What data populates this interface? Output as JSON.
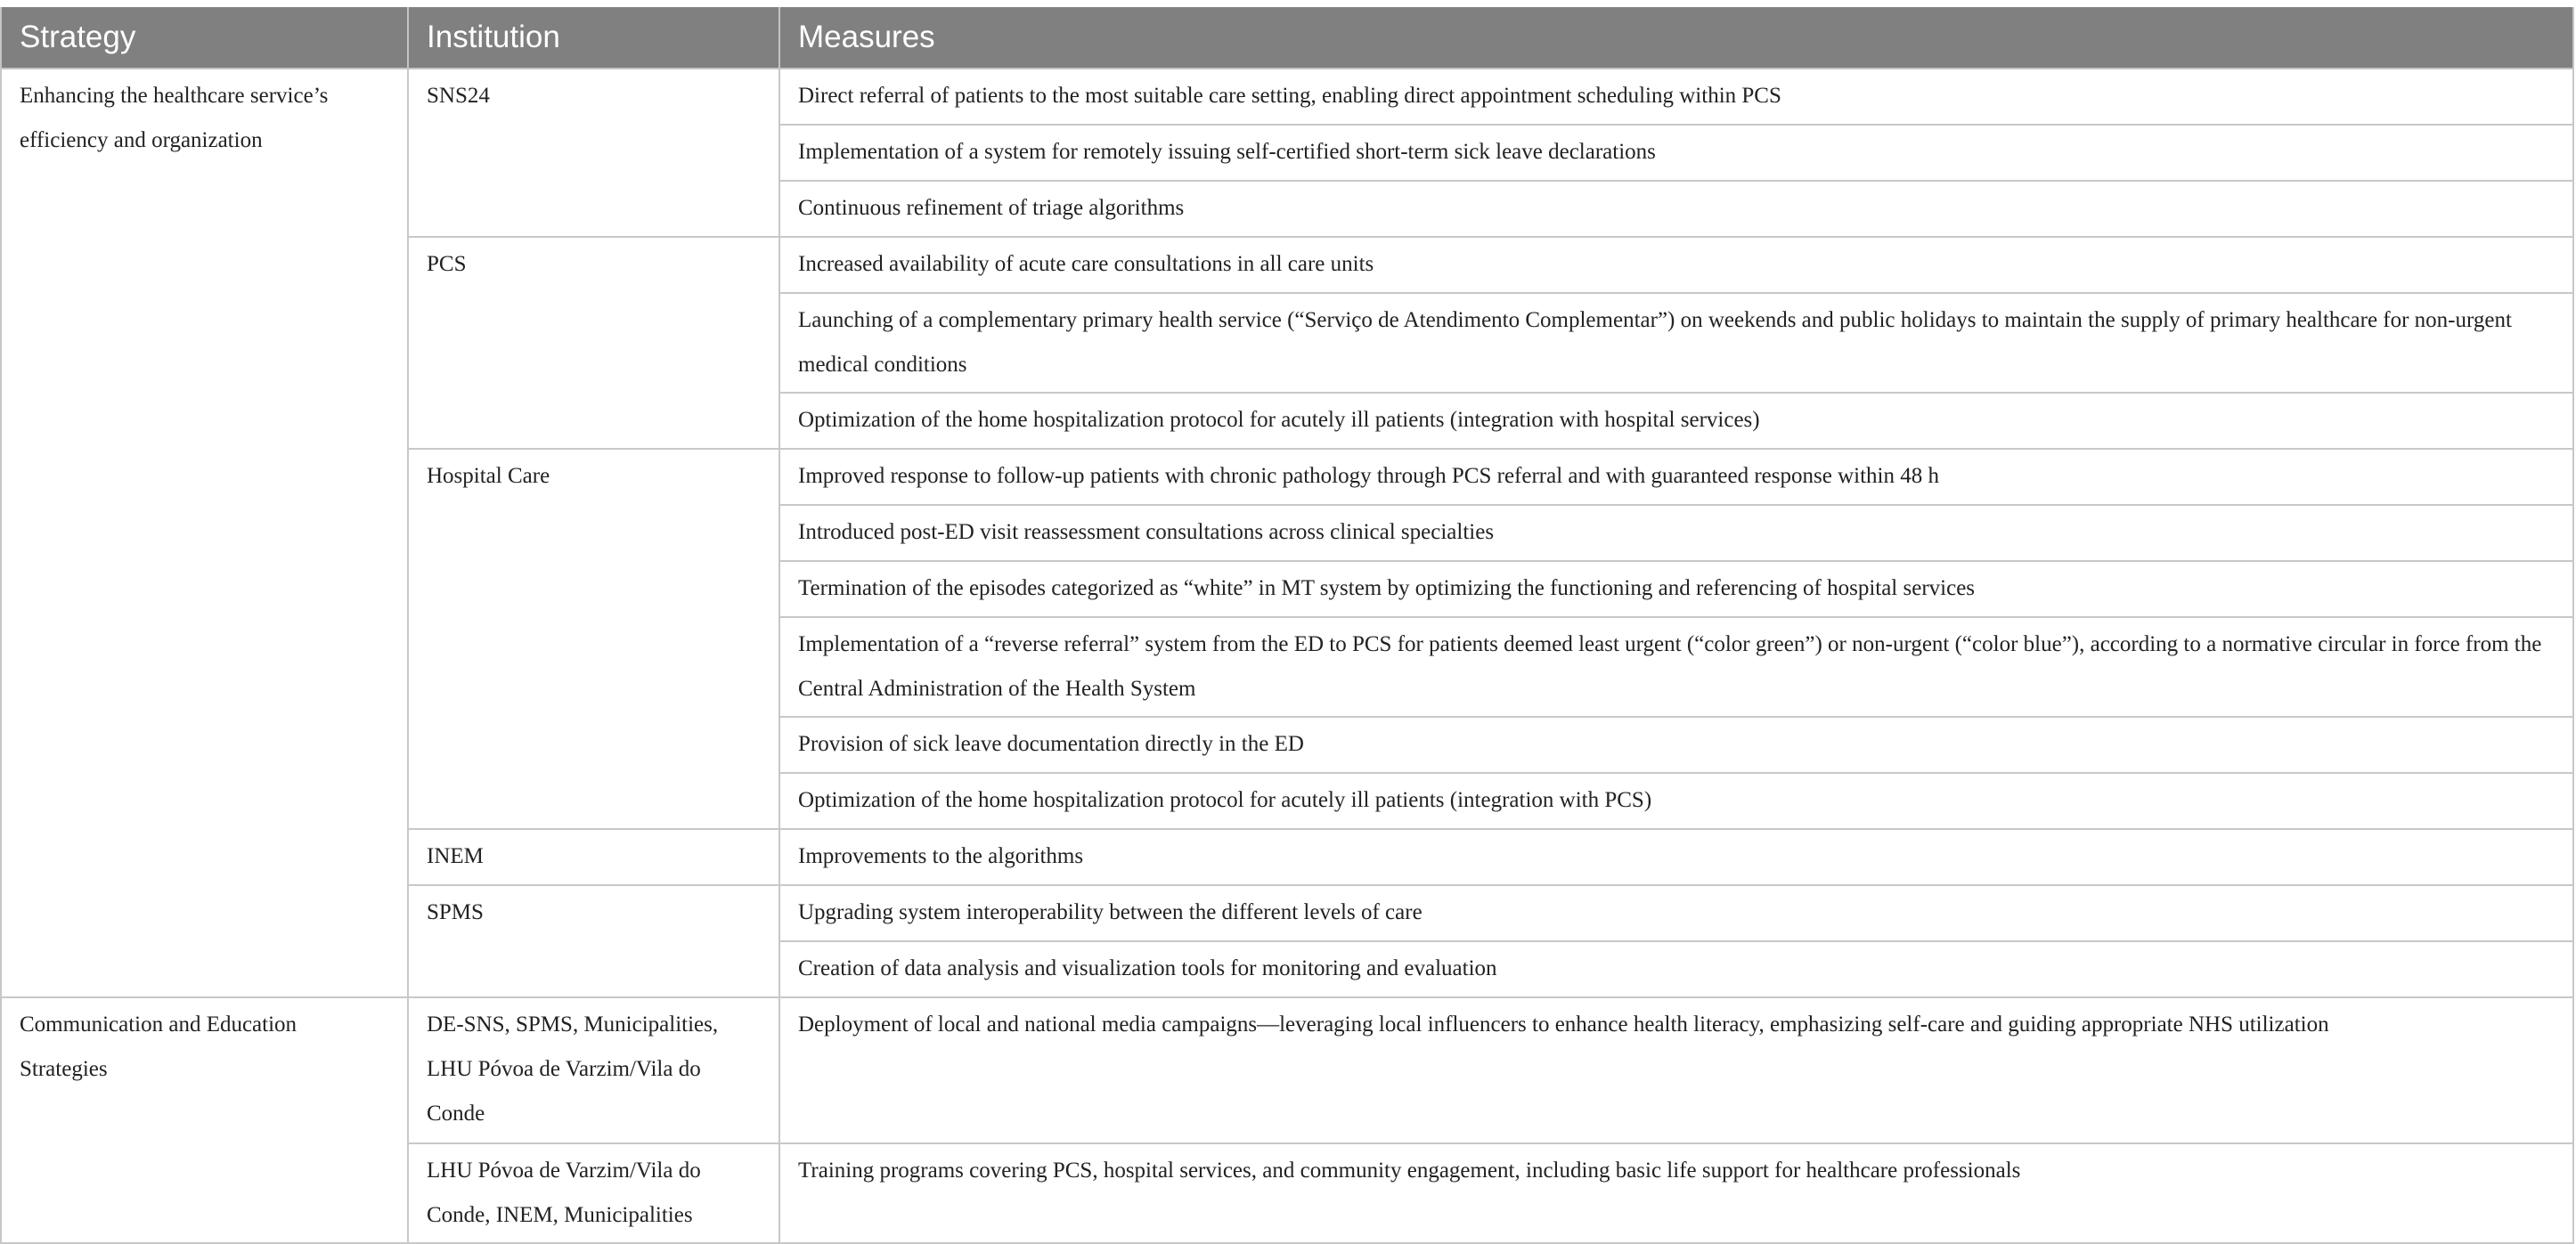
{
  "headers": {
    "strategy": "Strategy",
    "institution": "Institution",
    "measures": "Measures"
  },
  "strategies": [
    "Enhancing the healthcare service’s efficiency and organization",
    "Communication and Education Strategies"
  ],
  "institutions": [
    "SNS24",
    "PCS",
    "Hospital Care",
    "INEM",
    "SPMS",
    "DE-SNS, SPMS, Municipalities, LHU Póvoa de Varzim/Vila do Conde",
    "LHU Póvoa de Varzim/Vila do Conde, INEM, Municipalities"
  ],
  "measures": [
    "Direct referral of patients to the most suitable care setting, enabling direct appointment scheduling within PCS",
    "Implementation of a system for remotely issuing self-certified short-term sick leave declarations",
    "Continuous refinement of triage algorithms",
    "Increased availability of acute care consultations in all care units",
    "Launching of a complementary primary health service (“Serviço de Atendimento Complementar”) on weekends and public holidays to maintain the supply of primary healthcare for non-urgent medical conditions",
    "Optimization of the home hospitalization protocol for acutely ill patients (integration with hospital services)",
    "Improved response to follow-up patients with chronic pathology through PCS referral and with guaranteed response within 48 h",
    "Introduced post-ED visit reassessment consultations across clinical specialties",
    "Termination of the episodes categorized as “white” in MT system by optimizing the functioning and referencing of hospital services",
    "Implementation of a “reverse referral” system from the ED to PCS for patients deemed least urgent (“color green”) or non-urgent (“color blue”), according to a normative circular in force from the Central Administration of the Health System",
    "Provision of sick leave documentation directly in the ED",
    "Optimization of the home hospitalization protocol for acutely ill patients (integration with PCS)",
    "Improvements to the algorithms",
    "Upgrading system interoperability between the different levels of care",
    "Creation of data analysis and visualization tools for monitoring and evaluation",
    "Deployment of local and national media campaigns—leveraging local influencers to enhance health literacy, emphasizing self-care and guiding appropriate NHS utilization",
    "Training programs covering PCS, hospital services, and community engagement, including basic life support for healthcare professionals"
  ],
  "colors": {
    "header_bg": "#808080",
    "header_text": "#ffffff",
    "border": "#c8c8c8"
  }
}
